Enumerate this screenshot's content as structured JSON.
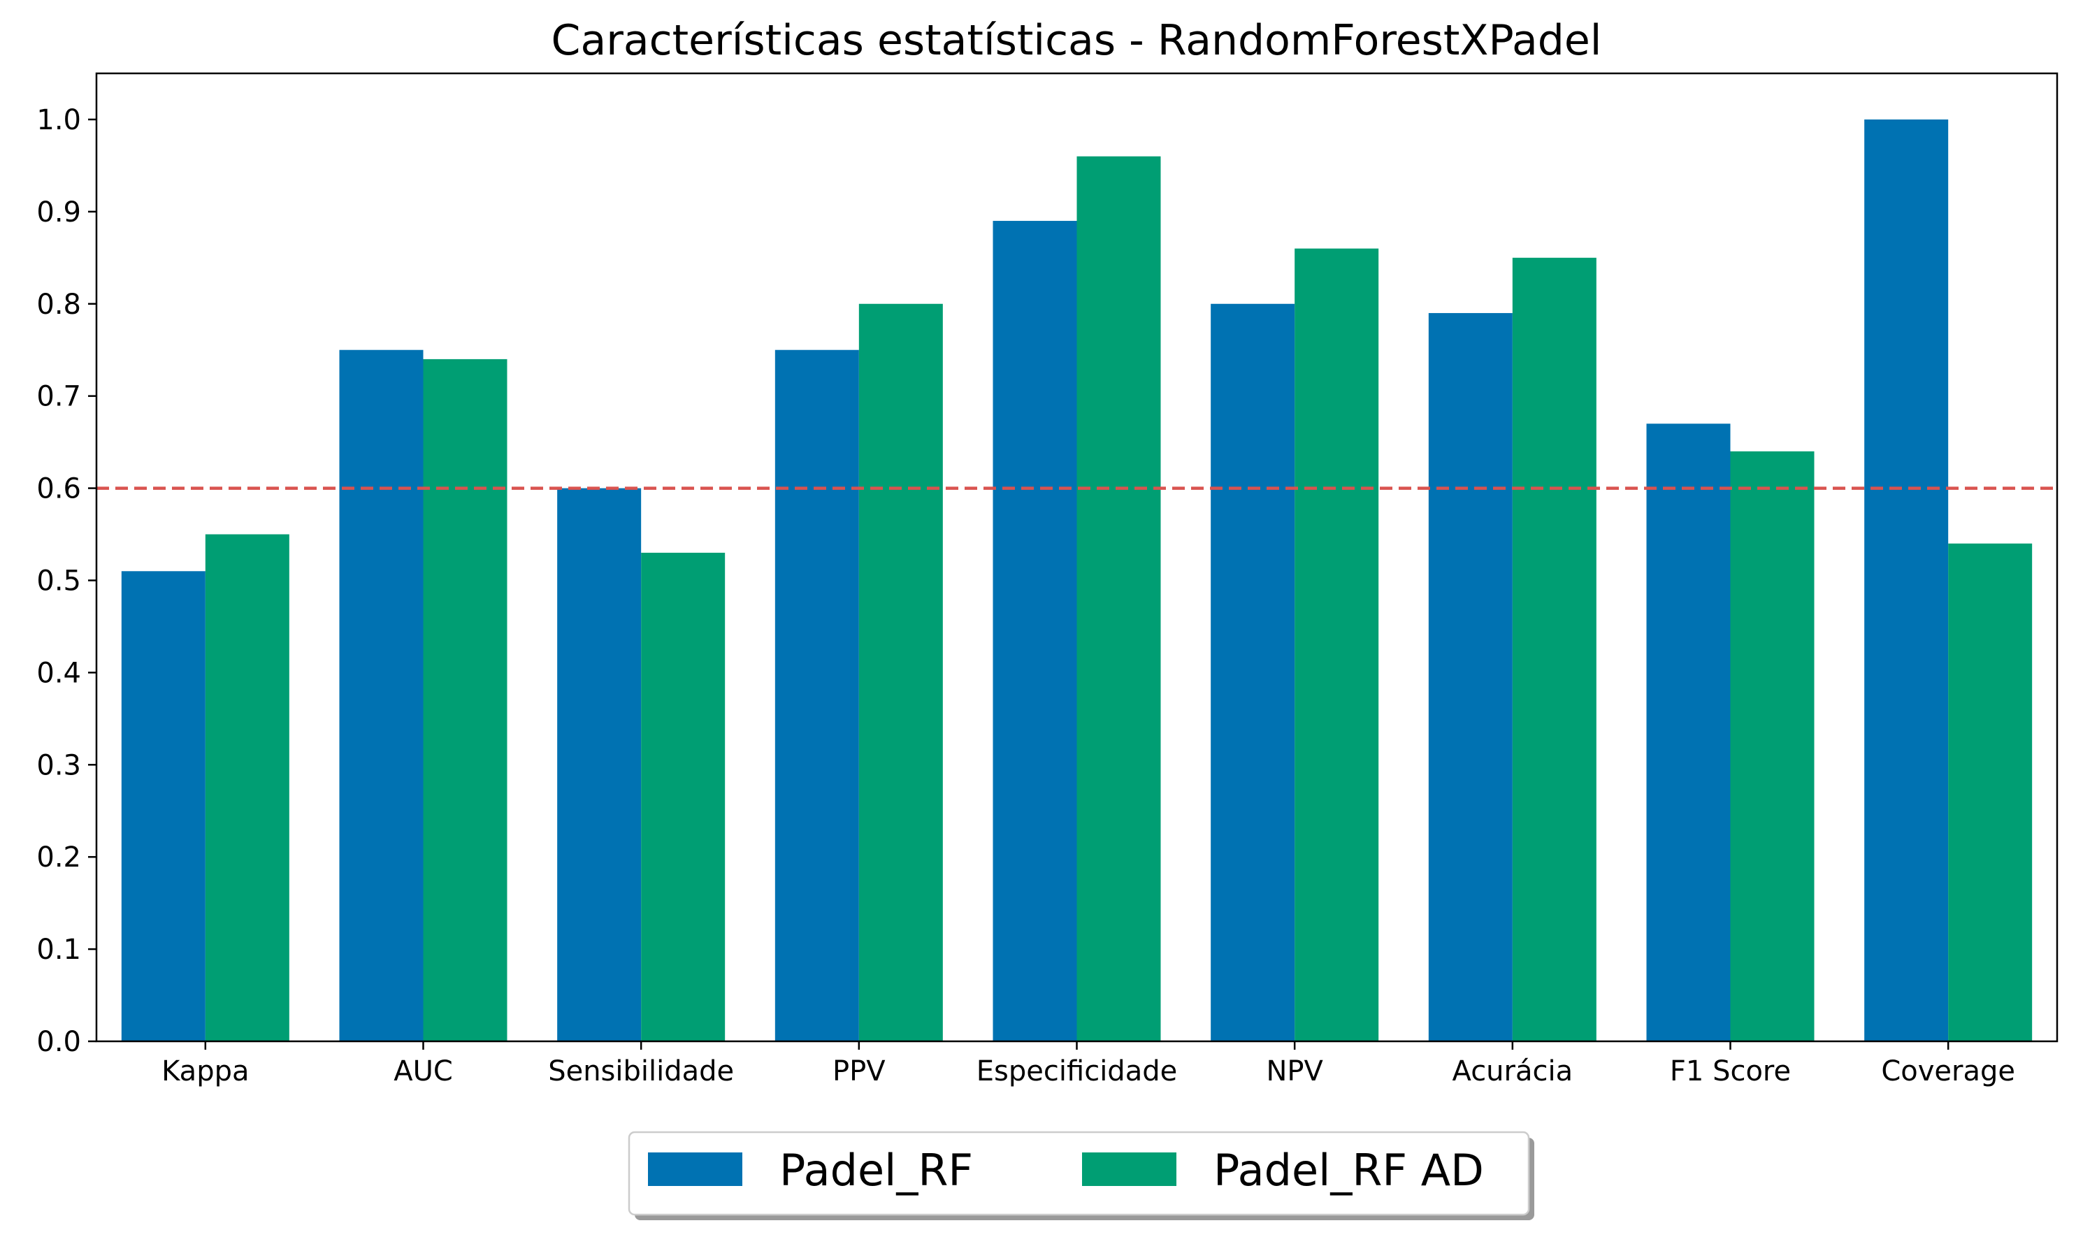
{
  "chart_data": {
    "type": "bar",
    "title": "Características estatísticas - RandomForestXPadel",
    "xlabel": "",
    "ylabel": "",
    "categories": [
      "Kappa",
      "AUC",
      "Sensibilidade",
      "PPV",
      "Especificidade",
      "NPV",
      "Acurácia",
      "F1 Score",
      "Coverage"
    ],
    "series": [
      {
        "name": "Padel_RF",
        "color": "#0072b2",
        "values": [
          0.51,
          0.75,
          0.6,
          0.75,
          0.89,
          0.8,
          0.79,
          0.67,
          1.0
        ]
      },
      {
        "name": "Padel_RF AD",
        "color": "#009e73",
        "values": [
          0.55,
          0.74,
          0.53,
          0.8,
          0.96,
          0.86,
          0.85,
          0.64,
          0.54
        ]
      }
    ],
    "ylim": [
      0,
      1.05
    ],
    "yticks": [
      "0.0",
      "0.1",
      "0.2",
      "0.3",
      "0.4",
      "0.5",
      "0.6",
      "0.7",
      "0.8",
      "0.9",
      "1.0"
    ],
    "reference_line": {
      "value": 0.6,
      "color": "#d9534f",
      "style": "dashed"
    },
    "grid": false,
    "legend_position": "bottom-center"
  }
}
